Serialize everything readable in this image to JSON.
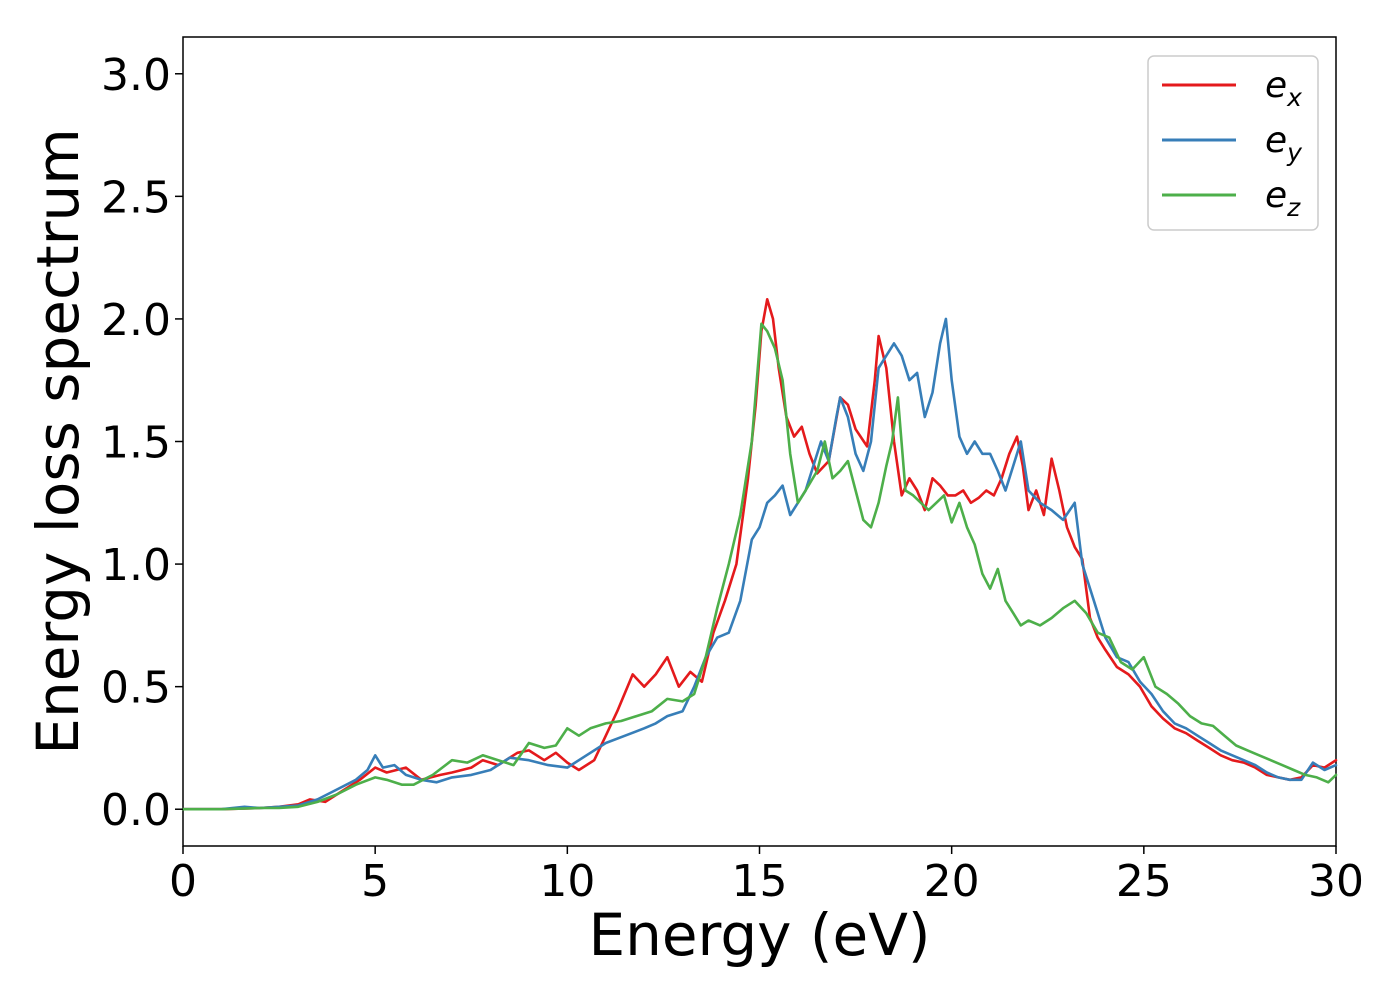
{
  "chart_data": {
    "type": "line",
    "title": "",
    "xlabel": "Energy (eV)",
    "ylabel": "Energy loss spectrum",
    "xlim": [
      0,
      30
    ],
    "ylim": [
      -0.15,
      3.15
    ],
    "xticks": [
      0,
      5,
      10,
      15,
      20,
      25,
      30
    ],
    "xtick_labels": [
      "0",
      "5",
      "10",
      "15",
      "20",
      "25",
      "30"
    ],
    "yticks": [
      0.0,
      0.5,
      1.0,
      1.5,
      2.0,
      2.5,
      3.0
    ],
    "ytick_labels": [
      "0.0",
      "0.5",
      "1.0",
      "1.5",
      "2.0",
      "2.5",
      "3.0"
    ],
    "grid": false,
    "legend_position": "top-right",
    "series": [
      {
        "name": "e_x",
        "label_base": "e",
        "label_sub": "x",
        "color": "#e41a1c",
        "x": [
          0,
          1,
          2,
          2.5,
          3,
          3.3,
          3.7,
          4.2,
          4.6,
          5,
          5.3,
          5.8,
          6.2,
          6.7,
          7,
          7.5,
          7.8,
          8.2,
          8.7,
          9,
          9.4,
          9.7,
          10,
          10.3,
          10.7,
          11,
          11.3,
          11.7,
          12,
          12.3,
          12.6,
          12.9,
          13.2,
          13.5,
          13.8,
          14.1,
          14.4,
          14.7,
          14.9,
          15.05,
          15.2,
          15.35,
          15.5,
          15.7,
          15.9,
          16.1,
          16.3,
          16.5,
          16.8,
          17.1,
          17.3,
          17.5,
          17.8,
          18,
          18.1,
          18.3,
          18.5,
          18.7,
          18.9,
          19.1,
          19.3,
          19.5,
          19.7,
          19.9,
          20.1,
          20.3,
          20.5,
          20.7,
          20.9,
          21.1,
          21.3,
          21.5,
          21.7,
          21.85,
          22,
          22.2,
          22.4,
          22.6,
          22.8,
          23,
          23.2,
          23.4,
          23.6,
          23.8,
          24,
          24.3,
          24.6,
          24.9,
          25.2,
          25.5,
          25.8,
          26.1,
          26.4,
          26.7,
          27,
          27.3,
          27.6,
          27.9,
          28.2,
          28.5,
          28.8,
          29.1,
          29.4,
          29.7,
          30
        ],
        "y": [
          0,
          0,
          0.005,
          0.01,
          0.02,
          0.04,
          0.03,
          0.08,
          0.12,
          0.17,
          0.15,
          0.17,
          0.12,
          0.14,
          0.15,
          0.17,
          0.2,
          0.18,
          0.23,
          0.24,
          0.2,
          0.23,
          0.19,
          0.16,
          0.2,
          0.3,
          0.4,
          0.55,
          0.5,
          0.55,
          0.62,
          0.5,
          0.56,
          0.52,
          0.72,
          0.85,
          1.0,
          1.35,
          1.65,
          1.95,
          2.08,
          2.0,
          1.8,
          1.6,
          1.52,
          1.56,
          1.45,
          1.37,
          1.42,
          1.68,
          1.65,
          1.55,
          1.48,
          1.75,
          1.93,
          1.8,
          1.5,
          1.28,
          1.35,
          1.3,
          1.22,
          1.35,
          1.32,
          1.28,
          1.28,
          1.3,
          1.25,
          1.27,
          1.3,
          1.28,
          1.35,
          1.45,
          1.52,
          1.4,
          1.22,
          1.3,
          1.2,
          1.43,
          1.3,
          1.15,
          1.07,
          1.02,
          0.78,
          0.7,
          0.65,
          0.58,
          0.55,
          0.5,
          0.42,
          0.37,
          0.33,
          0.31,
          0.28,
          0.25,
          0.22,
          0.2,
          0.19,
          0.17,
          0.14,
          0.13,
          0.12,
          0.13,
          0.18,
          0.17,
          0.2
        ]
      },
      {
        "name": "e_y",
        "label_base": "e",
        "label_sub": "y",
        "color": "#377eb8",
        "x": [
          0,
          1,
          1.6,
          2,
          2.5,
          3,
          3.5,
          4,
          4.5,
          4.8,
          5,
          5.2,
          5.5,
          5.8,
          6.2,
          6.6,
          7,
          7.5,
          8,
          8.5,
          9,
          9.5,
          10,
          10.5,
          11,
          11.5,
          12,
          12.3,
          12.6,
          13,
          13.3,
          13.6,
          13.9,
          14.2,
          14.5,
          14.8,
          15,
          15.2,
          15.4,
          15.6,
          15.8,
          16,
          16.2,
          16.4,
          16.6,
          16.8,
          17,
          17.1,
          17.3,
          17.5,
          17.7,
          17.9,
          18.1,
          18.3,
          18.5,
          18.7,
          18.9,
          19.1,
          19.3,
          19.5,
          19.7,
          19.85,
          20,
          20.2,
          20.4,
          20.6,
          20.8,
          21,
          21.2,
          21.4,
          21.6,
          21.8,
          22,
          22.3,
          22.6,
          22.9,
          23.2,
          23.4,
          23.7,
          24,
          24.3,
          24.6,
          24.9,
          25.2,
          25.5,
          25.8,
          26.1,
          26.4,
          26.7,
          27,
          27.3,
          27.6,
          27.9,
          28.2,
          28.5,
          28.8,
          29.1,
          29.4,
          29.7,
          30
        ],
        "y": [
          0,
          0,
          0.01,
          0.005,
          0.01,
          0.015,
          0.04,
          0.08,
          0.12,
          0.16,
          0.22,
          0.17,
          0.18,
          0.14,
          0.12,
          0.11,
          0.13,
          0.14,
          0.16,
          0.21,
          0.2,
          0.18,
          0.17,
          0.22,
          0.27,
          0.3,
          0.33,
          0.35,
          0.38,
          0.4,
          0.5,
          0.62,
          0.7,
          0.72,
          0.85,
          1.1,
          1.15,
          1.25,
          1.28,
          1.32,
          1.2,
          1.25,
          1.3,
          1.4,
          1.5,
          1.42,
          1.6,
          1.68,
          1.6,
          1.45,
          1.38,
          1.5,
          1.8,
          1.85,
          1.9,
          1.85,
          1.75,
          1.78,
          1.6,
          1.7,
          1.9,
          2.0,
          1.75,
          1.52,
          1.45,
          1.5,
          1.45,
          1.45,
          1.38,
          1.3,
          1.4,
          1.5,
          1.3,
          1.25,
          1.22,
          1.18,
          1.25,
          1.0,
          0.85,
          0.7,
          0.62,
          0.6,
          0.52,
          0.47,
          0.4,
          0.35,
          0.33,
          0.3,
          0.27,
          0.24,
          0.22,
          0.2,
          0.18,
          0.15,
          0.13,
          0.12,
          0.12,
          0.19,
          0.16,
          0.18
        ]
      },
      {
        "name": "e_z",
        "label_base": "e",
        "label_sub": "z",
        "color": "#4daf4a",
        "x": [
          0,
          1,
          2,
          2.5,
          3,
          3.5,
          4,
          4.5,
          5,
          5.3,
          5.7,
          6,
          6.5,
          7,
          7.4,
          7.8,
          8.2,
          8.6,
          9,
          9.4,
          9.7,
          10,
          10.3,
          10.6,
          11,
          11.4,
          11.8,
          12.2,
          12.6,
          13,
          13.3,
          13.6,
          13.9,
          14.2,
          14.5,
          14.8,
          15.05,
          15.2,
          15.4,
          15.6,
          15.8,
          16,
          16.2,
          16.5,
          16.7,
          16.9,
          17.1,
          17.3,
          17.5,
          17.7,
          17.9,
          18.1,
          18.3,
          18.45,
          18.6,
          18.8,
          19,
          19.2,
          19.4,
          19.6,
          19.8,
          20,
          20.2,
          20.4,
          20.6,
          20.8,
          21,
          21.2,
          21.4,
          21.6,
          21.8,
          22,
          22.3,
          22.6,
          22.9,
          23.2,
          23.5,
          23.8,
          24.1,
          24.4,
          24.7,
          25,
          25.3,
          25.6,
          25.9,
          26.2,
          26.5,
          26.8,
          27.1,
          27.4,
          27.7,
          28,
          28.3,
          28.6,
          28.9,
          29.2,
          29.5,
          29.8,
          30
        ],
        "y": [
          0,
          0,
          0.005,
          0.005,
          0.01,
          0.03,
          0.06,
          0.1,
          0.13,
          0.12,
          0.1,
          0.1,
          0.14,
          0.2,
          0.19,
          0.22,
          0.2,
          0.18,
          0.27,
          0.25,
          0.26,
          0.33,
          0.3,
          0.33,
          0.35,
          0.36,
          0.38,
          0.4,
          0.45,
          0.44,
          0.47,
          0.62,
          0.82,
          1.0,
          1.2,
          1.5,
          1.98,
          1.95,
          1.88,
          1.75,
          1.45,
          1.25,
          1.3,
          1.38,
          1.5,
          1.35,
          1.38,
          1.42,
          1.3,
          1.18,
          1.15,
          1.25,
          1.4,
          1.5,
          1.68,
          1.3,
          1.28,
          1.25,
          1.22,
          1.25,
          1.28,
          1.17,
          1.25,
          1.15,
          1.08,
          0.96,
          0.9,
          0.98,
          0.85,
          0.8,
          0.75,
          0.77,
          0.75,
          0.78,
          0.82,
          0.85,
          0.8,
          0.72,
          0.7,
          0.6,
          0.57,
          0.62,
          0.5,
          0.47,
          0.43,
          0.38,
          0.35,
          0.34,
          0.3,
          0.26,
          0.24,
          0.22,
          0.2,
          0.18,
          0.16,
          0.14,
          0.13,
          0.11,
          0.14
        ]
      }
    ]
  }
}
